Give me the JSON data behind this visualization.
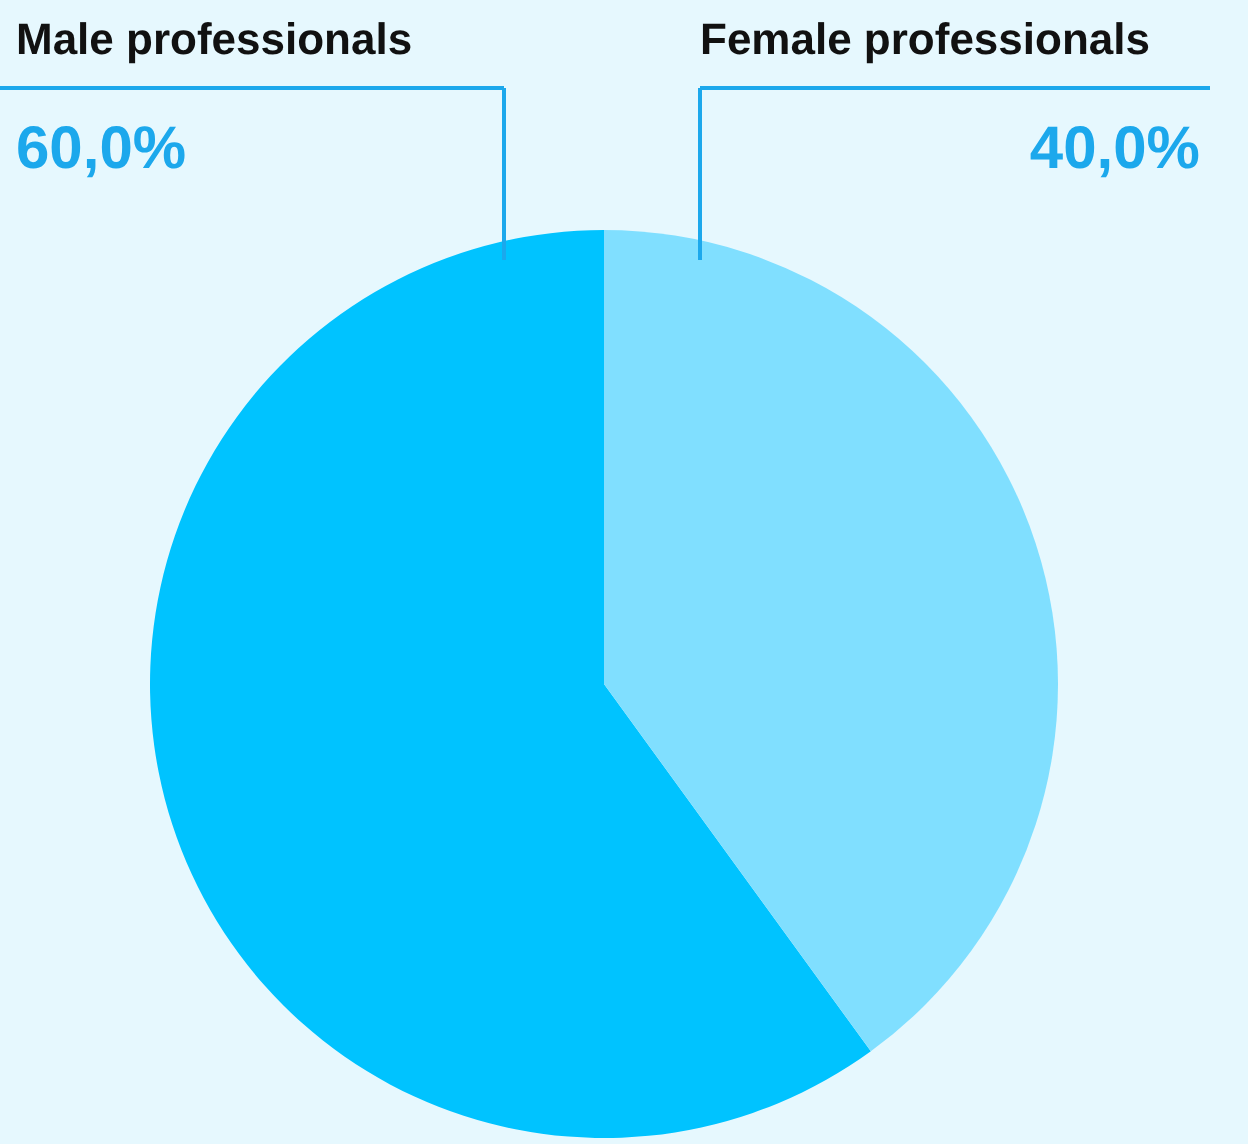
{
  "chart_data": {
    "type": "pie",
    "categories": [
      "Male professionals",
      "Female professionals"
    ],
    "values": [
      60,
      40
    ],
    "value_labels": [
      "60,0%",
      "40,0%"
    ],
    "colors": [
      "#00c3ff",
      "#80dfff"
    ]
  }
}
